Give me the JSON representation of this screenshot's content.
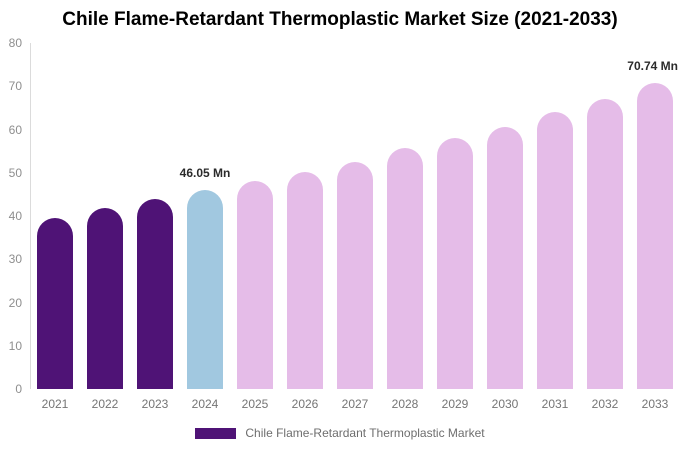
{
  "title": "Chile Flame-Retardant Thermoplastic Market Size (2021-2033)",
  "chart_data": {
    "type": "bar",
    "title": "Chile Flame-Retardant Thermoplastic Market Size (2021-2033)",
    "categories": [
      "2021",
      "2022",
      "2023",
      "2024",
      "2025",
      "2026",
      "2027",
      "2028",
      "2029",
      "2030",
      "2031",
      "2032",
      "2033"
    ],
    "values": [
      39.6,
      41.8,
      43.9,
      46.05,
      48.1,
      50.2,
      52.6,
      55.7,
      58.0,
      60.6,
      64.0,
      67.0,
      70.74
    ],
    "unit": "Mn",
    "xlabel": "",
    "ylabel": "",
    "ylim": [
      0,
      80
    ],
    "yticks": [
      0,
      10,
      20,
      30,
      40,
      50,
      60,
      70,
      80
    ],
    "grid": false,
    "point_colors": [
      "#4F1376",
      "#4F1376",
      "#4F1376",
      "#A1C8E0",
      "#E5BCE8",
      "#E5BCE8",
      "#E5BCE8",
      "#E5BCE8",
      "#E5BCE8",
      "#E5BCE8",
      "#E5BCE8",
      "#E5BCE8",
      "#E5BCE8"
    ],
    "data_labels": [
      {
        "index": 3,
        "text": "46.05 Mn"
      },
      {
        "index": 12,
        "text": "70.74 Mn"
      }
    ],
    "legend": {
      "label": "Chile Flame-Retardant Thermoplastic Market",
      "swatch_color": "#4F1376",
      "position": "bottom"
    }
  },
  "colors": {
    "bar_historical": "#4F1376",
    "bar_highlight": "#A1C8E0",
    "bar_forecast": "#E5BCE8",
    "axis_line": "#DBDBDB",
    "y_tick_text": "#8E8E8E",
    "x_tick_text": "#757575",
    "title_text": "#000000",
    "data_label_text": "#2B2B2B",
    "legend_text": "#6E6E6E",
    "background": "#FFFFFF"
  }
}
